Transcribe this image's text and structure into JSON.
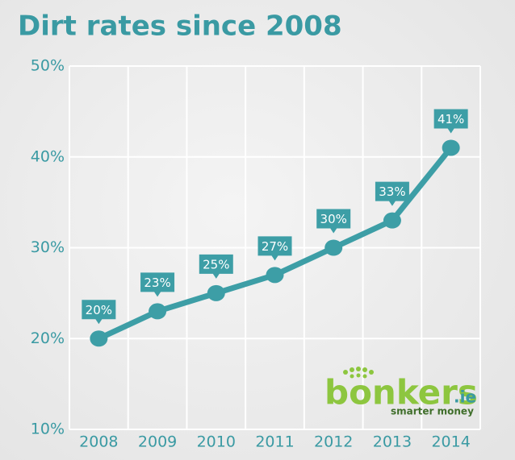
{
  "chart_data": {
    "type": "line",
    "title": "Dirt rates since 2008",
    "categories": [
      "2008",
      "2009",
      "2010",
      "2011",
      "2012",
      "2013",
      "2014"
    ],
    "values": [
      20,
      23,
      25,
      27,
      30,
      33,
      41
    ],
    "value_labels": [
      "20%",
      "23%",
      "25%",
      "27%",
      "30%",
      "33%",
      "41%"
    ],
    "color": "#3d9ea6",
    "ylim": [
      10,
      50
    ],
    "yticks": [
      {
        "value": 10,
        "label": "10%"
      },
      {
        "value": 20,
        "label": "20%"
      },
      {
        "value": 30,
        "label": "30%"
      },
      {
        "value": 40,
        "label": "40%"
      },
      {
        "value": 50,
        "label": "50%"
      }
    ],
    "grid": true
  },
  "logo": {
    "name": "bonkers",
    "suffix": ".ie",
    "tagline": "smarter money"
  }
}
